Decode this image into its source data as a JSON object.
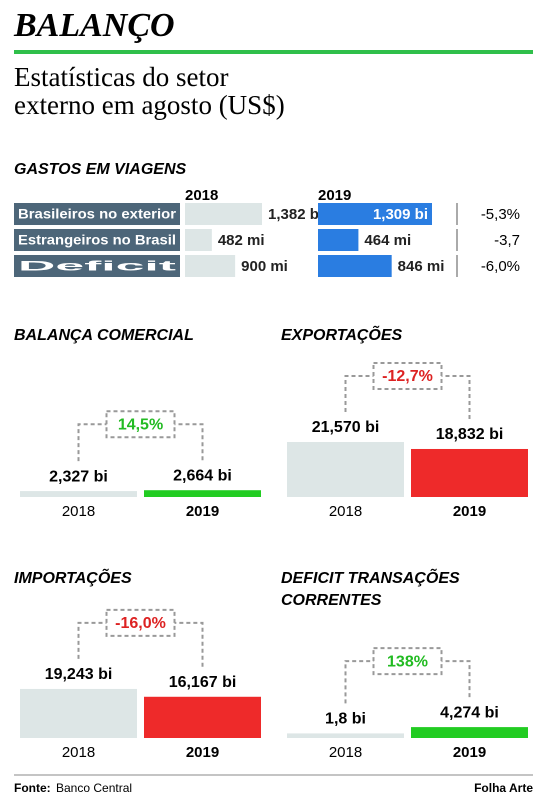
{
  "header": {
    "brand": "BALANÇO",
    "title": [
      "Estatísticas do setor",
      "externo em agosto (US$)"
    ]
  },
  "chart_data": [
    {
      "type": "hbar-table",
      "title": "GASTOS EM VIAGENS",
      "categories": [
        "Brasileiros no exterior",
        "Estrangeiros no Brasil",
        "Deficit"
      ],
      "series": [
        {
          "name": "2018",
          "color": "#dde6e6",
          "values": [
            1382000000,
            482000000,
            900000000
          ],
          "value_labels": [
            "1,382 bi",
            "482 mi",
            "900 mi"
          ]
        },
        {
          "name": "2019",
          "color": "#2a7de1",
          "values": [
            1309000000,
            464000000,
            846000000
          ],
          "value_labels": [
            "1,309 bi",
            "464 mi",
            "846 mi"
          ]
        }
      ],
      "changes": [
        -5.3,
        -3.7,
        -6.0
      ],
      "change_labels": [
        "-5,3%",
        "-3,7",
        "-6,0%"
      ]
    },
    {
      "type": "pair",
      "title": "BALANÇA COMERCIAL",
      "categories": [
        "2018",
        "2019"
      ],
      "values": [
        2327000000,
        2664000000
      ],
      "value_labels": [
        "2,327 bi",
        "2,664 bi"
      ],
      "colors": [
        "#dde6e6",
        "#22cc22"
      ],
      "change": 14.5,
      "change_label": "14,5%",
      "change_color": "#22bb22"
    },
    {
      "type": "pair",
      "title": "EXPORTAÇÕES",
      "categories": [
        "2018",
        "2019"
      ],
      "values": [
        21570000000,
        18832000000
      ],
      "value_labels": [
        "21,570 bi",
        "18,832 bi"
      ],
      "colors": [
        "#dde6e6",
        "#ee2a2a"
      ],
      "change": -12.7,
      "change_label": "-12,7%",
      "change_color": "#dd2222"
    },
    {
      "type": "pair",
      "title": "IMPORTAÇÕES",
      "categories": [
        "2018",
        "2019"
      ],
      "values": [
        19243000000,
        16167000000
      ],
      "value_labels": [
        "19,243 bi",
        "16,167 bi"
      ],
      "colors": [
        "#dde6e6",
        "#ee2a2a"
      ],
      "change": -16.0,
      "change_label": "-16,0%",
      "change_color": "#dd2222"
    },
    {
      "type": "pair",
      "title": [
        "DEFICIT TRANSAÇÕES",
        "CORRENTES"
      ],
      "categories": [
        "2018",
        "2019"
      ],
      "values": [
        1800000000,
        4274000000
      ],
      "value_labels": [
        "1,8 bi",
        "4,274 bi"
      ],
      "colors": [
        "#dde6e6",
        "#22cc22"
      ],
      "change": 138,
      "change_label": "138%",
      "change_color": "#22bb22"
    }
  ],
  "footer": {
    "source_label": "Fonte:",
    "source": "Banco Central",
    "credit": "Folha Arte"
  }
}
